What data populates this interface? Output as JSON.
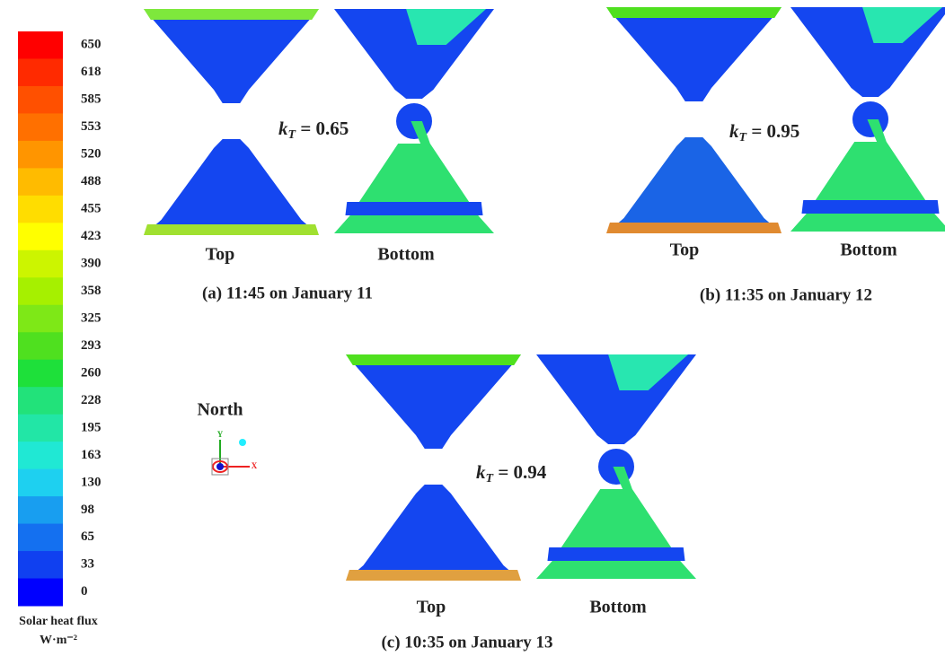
{
  "colorbar": {
    "ticks": [
      650,
      618,
      585,
      553,
      520,
      488,
      455,
      423,
      390,
      358,
      325,
      293,
      260,
      228,
      195,
      163,
      130,
      98,
      65,
      33,
      0
    ],
    "colors": [
      "#ff0000",
      "#ff2a00",
      "#ff5000",
      "#ff7000",
      "#ff9500",
      "#ffbb00",
      "#ffdd00",
      "#ffff00",
      "#ccf500",
      "#a6f000",
      "#7ee817",
      "#4fe01f",
      "#1ee03a",
      "#22e27a",
      "#22e6a6",
      "#20e8d4",
      "#1ed0f0",
      "#189ef0",
      "#1470f0",
      "#1040f0",
      "#0000ff"
    ],
    "title": "Solar heat flux",
    "unit": "W·m⁻²"
  },
  "compass": {
    "label": "North",
    "axis_y": "Y",
    "axis_x": "X"
  },
  "panels": [
    {
      "caption": "(a)  11:45 on January 11",
      "kt_var": "k",
      "kt_sub": "T",
      "kt_text": " = 0.65",
      "top_label": "Top",
      "bottom_label": "Bottom"
    },
    {
      "caption": "(b)  11:35 on January 12",
      "kt_var": "k",
      "kt_sub": "T",
      "kt_text": " = 0.95",
      "top_label": "Top",
      "bottom_label": "Bottom"
    },
    {
      "caption": "(c)  10:35 on January 13",
      "kt_var": "k",
      "kt_sub": "T",
      "kt_text": " = 0.94",
      "top_label": "Top",
      "bottom_label": "Bottom"
    }
  ]
}
